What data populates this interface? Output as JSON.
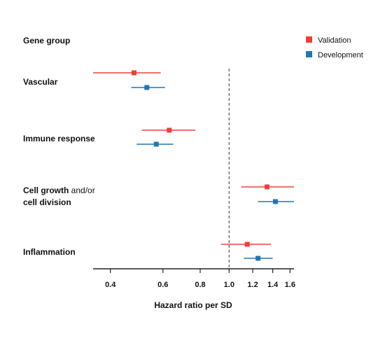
{
  "chart_data": {
    "type": "forest",
    "row_header": "Gene group",
    "xlabel": "Hazard ratio per SD",
    "x_scale": "log",
    "xlim": [
      0.35,
      1.65
    ],
    "xticks": [
      0.4,
      0.6,
      0.8,
      1.0,
      1.2,
      1.4,
      1.6
    ],
    "xtick_labels": [
      "0.4",
      "0.6",
      "0.8",
      "1.0",
      "1.2",
      "1.4",
      "1.6"
    ],
    "reference_line": 1.0,
    "legend_position": "top-right",
    "series": [
      {
        "name": "Validation",
        "color": "#e8423a"
      },
      {
        "name": "Development",
        "color": "#1f77b4"
      }
    ],
    "groups": [
      {
        "label_lines": [
          [
            "Vascular",
            ""
          ]
        ],
        "values": [
          {
            "series": "Validation",
            "hr": 0.48,
            "ci": [
              0.35,
              0.59
            ]
          },
          {
            "series": "Development",
            "hr": 0.53,
            "ci": [
              0.47,
              0.61
            ]
          }
        ]
      },
      {
        "label_lines": [
          [
            "Immune response",
            ""
          ]
        ],
        "values": [
          {
            "series": "Validation",
            "hr": 0.63,
            "ci": [
              0.51,
              0.77
            ]
          },
          {
            "series": "Development",
            "hr": 0.57,
            "ci": [
              0.49,
              0.65
            ]
          }
        ]
      },
      {
        "label_lines": [
          [
            "Cell growth",
            " and/or"
          ],
          [
            "cell division",
            ""
          ]
        ],
        "values": [
          {
            "series": "Validation",
            "hr": 1.34,
            "ci": [
              1.1,
              1.65
            ]
          },
          {
            "series": "Development",
            "hr": 1.43,
            "ci": [
              1.25,
              1.65
            ]
          }
        ]
      },
      {
        "label_lines": [
          [
            "Inflammation",
            ""
          ]
        ],
        "values": [
          {
            "series": "Validation",
            "hr": 1.15,
            "ci": [
              0.94,
              1.38
            ]
          },
          {
            "series": "Development",
            "hr": 1.25,
            "ci": [
              1.12,
              1.4
            ]
          }
        ]
      }
    ]
  }
}
